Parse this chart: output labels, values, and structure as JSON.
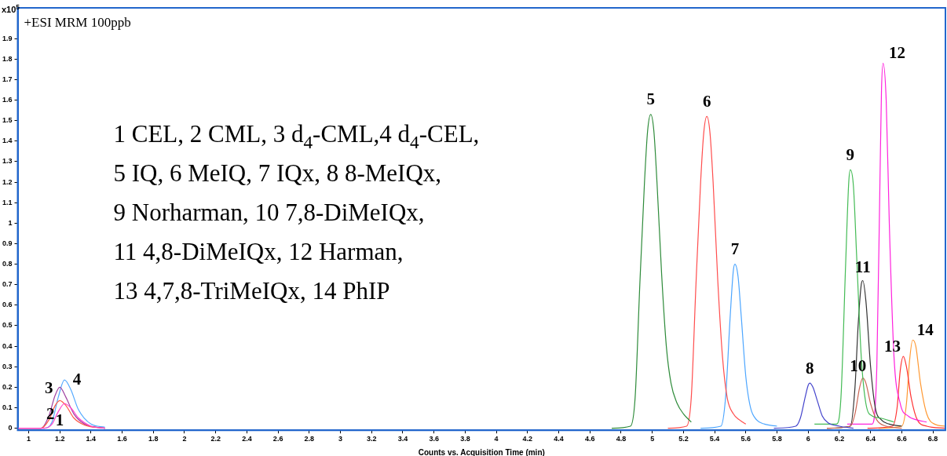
{
  "chart_data": {
    "type": "line",
    "title": "+ESI MRM 100ppb",
    "xlabel": "Counts vs. Acquisition Time (min)",
    "ylabel": "x10$^{5}$",
    "xlim": [
      0.93,
      6.88
    ],
    "ylim": [
      -0.01,
      2.05
    ],
    "xticks": [
      1,
      1.2,
      1.4,
      1.6,
      1.8,
      2,
      2.2,
      2.4,
      2.6,
      2.8,
      3,
      3.2,
      3.4,
      3.6,
      3.8,
      4,
      4.2,
      4.4,
      4.6,
      4.8,
      5,
      5.2,
      5.4,
      5.6,
      5.8,
      6,
      6.2,
      6.4,
      6.6,
      6.8
    ],
    "yticks": [
      0,
      0.1,
      0.2,
      0.3,
      0.4,
      0.5,
      0.6,
      0.7,
      0.8,
      0.9,
      1,
      1.1,
      1.2,
      1.3,
      1.4,
      1.5,
      1.6,
      1.7,
      1.8,
      1.9
    ],
    "grid": false,
    "legend": false,
    "marker": "none",
    "line_style": "solid",
    "series": [
      {
        "color": "#ff44cc",
        "x": [
          0.93,
          1.1,
          1.15,
          1.19,
          1.23,
          1.27,
          1.32,
          1.4,
          1.49
        ],
        "values": [
          0,
          0,
          0.02,
          0.08,
          0.12,
          0.1,
          0.05,
          0.01,
          0
        ]
      },
      {
        "color": "#ff5a4a",
        "x": [
          0.93,
          1.08,
          1.13,
          1.17,
          1.2,
          1.24,
          1.29,
          1.36,
          1.49
        ],
        "values": [
          0,
          0,
          0.04,
          0.11,
          0.135,
          0.11,
          0.05,
          0.015,
          0
        ]
      },
      {
        "color": "#a040a0",
        "x": [
          0.93,
          1.08,
          1.13,
          1.17,
          1.2,
          1.24,
          1.29,
          1.36,
          1.49
        ],
        "values": [
          0,
          0,
          0.06,
          0.16,
          0.2,
          0.15,
          0.07,
          0.02,
          0
        ]
      },
      {
        "color": "#55aaff",
        "x": [
          0.93,
          1.1,
          1.15,
          1.19,
          1.23,
          1.27,
          1.32,
          1.4,
          1.49
        ],
        "values": [
          0,
          0,
          0.03,
          0.15,
          0.235,
          0.19,
          0.09,
          0.02,
          0.005
        ]
      },
      {
        "color": "#2e8b3a",
        "x": [
          4.74,
          4.86,
          4.89,
          4.92,
          4.95,
          4.97,
          4.99,
          5.01,
          5.03,
          5.06,
          5.09,
          5.12,
          5.16,
          5.2,
          5.25
        ],
        "values": [
          0,
          0.01,
          0.15,
          0.7,
          1.2,
          1.45,
          1.53,
          1.45,
          1.2,
          0.75,
          0.4,
          0.22,
          0.12,
          0.07,
          0.03
        ]
      },
      {
        "color": "#ff4d4d",
        "x": [
          5.1,
          5.22,
          5.25,
          5.28,
          5.31,
          5.33,
          5.35,
          5.37,
          5.39,
          5.42,
          5.45,
          5.48,
          5.52,
          5.56,
          5.6
        ],
        "values": [
          0,
          0.01,
          0.15,
          0.7,
          1.2,
          1.44,
          1.52,
          1.44,
          1.2,
          0.72,
          0.35,
          0.15,
          0.07,
          0.04,
          0.02
        ]
      },
      {
        "color": "#4da6ff",
        "x": [
          5.31,
          5.44,
          5.47,
          5.5,
          5.52,
          5.53,
          5.55,
          5.57,
          5.6,
          5.63,
          5.67,
          5.72,
          5.8
        ],
        "values": [
          0,
          0.01,
          0.15,
          0.55,
          0.77,
          0.8,
          0.74,
          0.55,
          0.25,
          0.1,
          0.04,
          0.02,
          0.01
        ]
      },
      {
        "color": "#4444cc",
        "x": [
          5.78,
          5.92,
          5.95,
          5.98,
          6,
          6.01,
          6.03,
          6.06,
          6.09,
          6.13,
          6.2,
          6.29
        ],
        "values": [
          0,
          0.01,
          0.05,
          0.15,
          0.21,
          0.22,
          0.2,
          0.13,
          0.06,
          0.025,
          0.01,
          0
        ]
      },
      {
        "color": "#44bb55",
        "x": [
          6.04,
          6.18,
          6.21,
          6.24,
          6.26,
          6.27,
          6.29,
          6.31,
          6.34,
          6.37,
          6.41,
          6.46,
          6.55
        ],
        "values": [
          0.02,
          0.02,
          0.15,
          0.8,
          1.2,
          1.26,
          1.18,
          0.85,
          0.35,
          0.12,
          0.06,
          0.05,
          0.03
        ]
      },
      {
        "color": "#cc6655",
        "x": [
          6.12,
          6.27,
          6.3,
          6.33,
          6.35,
          6.37,
          6.4,
          6.44,
          6.5,
          6.6
        ],
        "values": [
          0,
          0.01,
          0.07,
          0.2,
          0.245,
          0.22,
          0.12,
          0.04,
          0.01,
          0
        ]
      },
      {
        "color": "#333333",
        "x": [
          6.12,
          6.27,
          6.3,
          6.32,
          6.34,
          6.35,
          6.37,
          6.4,
          6.43,
          6.47,
          6.52,
          6.6
        ],
        "values": [
          0,
          0.01,
          0.2,
          0.5,
          0.7,
          0.72,
          0.62,
          0.3,
          0.1,
          0.04,
          0.02,
          0.01
        ]
      },
      {
        "color": "#ff22dd",
        "x": [
          6.25,
          6.41,
          6.44,
          6.46,
          6.47,
          6.48,
          6.5,
          6.52,
          6.55,
          6.59,
          6.64,
          6.7,
          6.76
        ],
        "values": [
          0.02,
          0.02,
          0.3,
          1.2,
          1.65,
          1.78,
          1.6,
          1,
          0.35,
          0.12,
          0.06,
          0.04,
          0.03
        ]
      },
      {
        "color": "#ff3333",
        "x": [
          6.38,
          6.54,
          6.57,
          6.59,
          6.61,
          6.63,
          6.66,
          6.7,
          6.76,
          6.88
        ],
        "values": [
          0,
          0.01,
          0.1,
          0.28,
          0.35,
          0.3,
          0.15,
          0.04,
          0.01,
          0
        ]
      },
      {
        "color": "#ff9933",
        "x": [
          6.45,
          6.6,
          6.63,
          6.65,
          6.67,
          6.69,
          6.72,
          6.76,
          6.81,
          6.88
        ],
        "values": [
          0,
          0.01,
          0.12,
          0.33,
          0.43,
          0.4,
          0.22,
          0.07,
          0.02,
          0.01
        ]
      }
    ],
    "annotations": [
      "1 CEL, 2 CML, 3 d$_{4}$-CML,4 d$_{4}$-CEL,",
      "5 IQ, 6 MeIQ, 7 IQx, 8 8-MeIQx,",
      "9 Norharman, 10 7,8-DiMeIQx,",
      "11 4,8-DiMeIQx, 12 Harman,",
      "13 4,7,8-TriMeIQx, 14 PhIP",
      {
        "text": "1",
        "x": 1.23,
        "y": 0.12
      },
      {
        "text": "2",
        "x": 1.2,
        "y": 0.135
      },
      {
        "text": "3",
        "x": 1.2,
        "y": 0.2
      },
      {
        "text": "4",
        "x": 1.23,
        "y": 0.235
      },
      {
        "text": "5",
        "x": 4.99,
        "y": 1.53
      },
      {
        "text": "6",
        "x": 5.35,
        "y": 1.52
      },
      {
        "text": "7",
        "x": 5.53,
        "y": 0.8
      },
      {
        "text": "8",
        "x": 6.01,
        "y": 0.22
      },
      {
        "text": "9",
        "x": 6.27,
        "y": 1.26
      },
      {
        "text": "10",
        "x": 6.35,
        "y": 0.245
      },
      {
        "text": "11",
        "x": 6.35,
        "y": 0.72
      },
      {
        "text": "12",
        "x": 6.48,
        "y": 1.78
      },
      {
        "text": "13",
        "x": 6.61,
        "y": 0.35
      },
      {
        "text": "14",
        "x": 6.67,
        "y": 0.43
      }
    ]
  }
}
